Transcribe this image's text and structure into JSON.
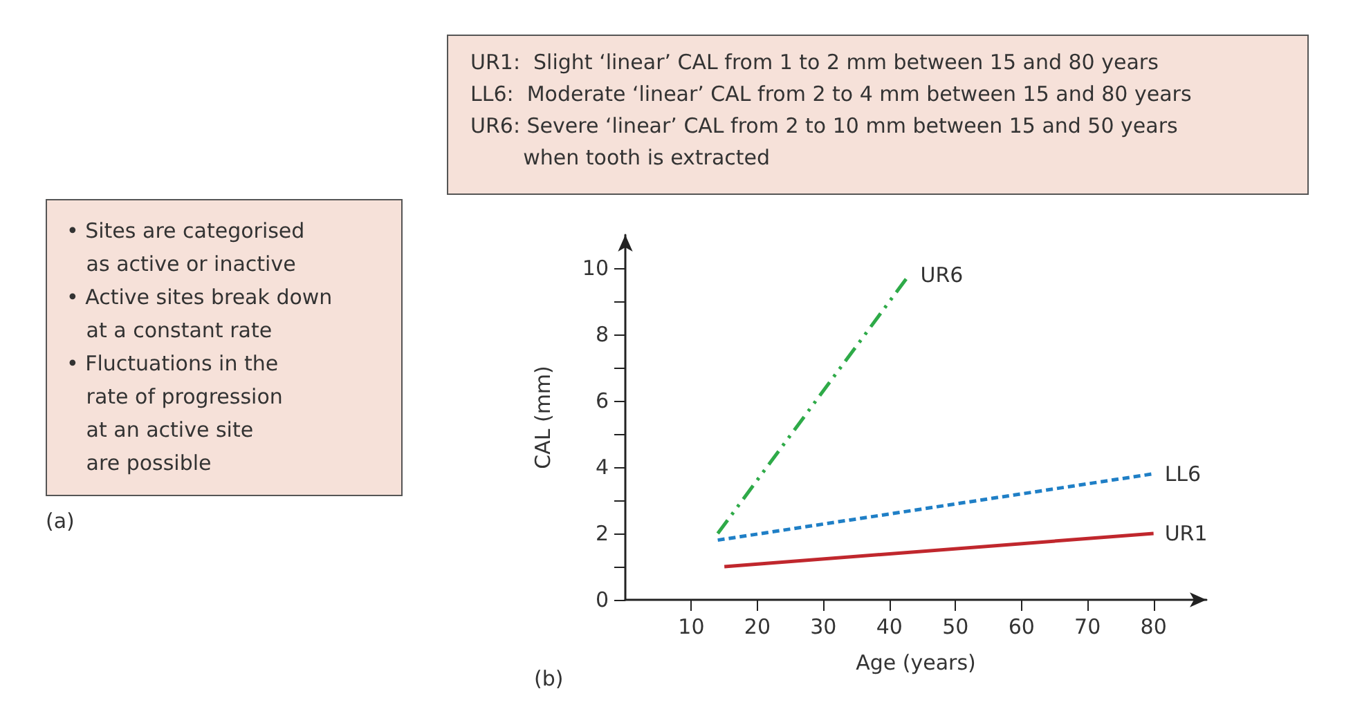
{
  "chart_data": {
    "type": "line",
    "xlabel": "Age (years)",
    "ylabel": "CAL (mm)",
    "xlim": [
      0,
      88
    ],
    "ylim": [
      0,
      11
    ],
    "xticks": [
      10,
      20,
      30,
      40,
      50,
      60,
      70,
      80
    ],
    "yticks": [
      0,
      {
        "value": 1,
        "label": null
      },
      2,
      {
        "value": 3,
        "label": null
      },
      4,
      {
        "value": 5,
        "label": null
      },
      6,
      {
        "value": 7,
        "label": null
      },
      8,
      {
        "value": 9,
        "label": null
      },
      10
    ],
    "grid": false,
    "legend": false,
    "marker": "none",
    "series": [
      {
        "name": "UR1",
        "color": "#c0272d",
        "line_style": "solid",
        "x": [
          15,
          80
        ],
        "values": [
          1,
          2
        ]
      },
      {
        "name": "LL6",
        "color": "#1f7fc6",
        "line_style": "dashed",
        "x": [
          14,
          80
        ],
        "values": [
          1.8,
          3.8
        ]
      },
      {
        "name": "UR6",
        "color": "#2eaa48",
        "line_style": "dashdot",
        "x": [
          14,
          43
        ],
        "values": [
          2,
          9.8
        ]
      }
    ],
    "annotations": [
      "UR1:  Slight ‘linear’ CAL from 1 to 2 mm between 15 and 80 years\nLL6:  Moderate ‘linear’ CAL from 2 to 4 mm between 15 and 80 years\nUR6: Severe ‘linear’ CAL from 2 to 10 mm between 15 and 50 years\n        when tooth is extracted",
      "• Sites are categorised\n   as active or inactive\n• Active sites break down\n   at a constant rate\n• Fluctuations in the\n   rate of progression\n   at an active site\n   are possible",
      "(a)",
      "(b)"
    ]
  }
}
